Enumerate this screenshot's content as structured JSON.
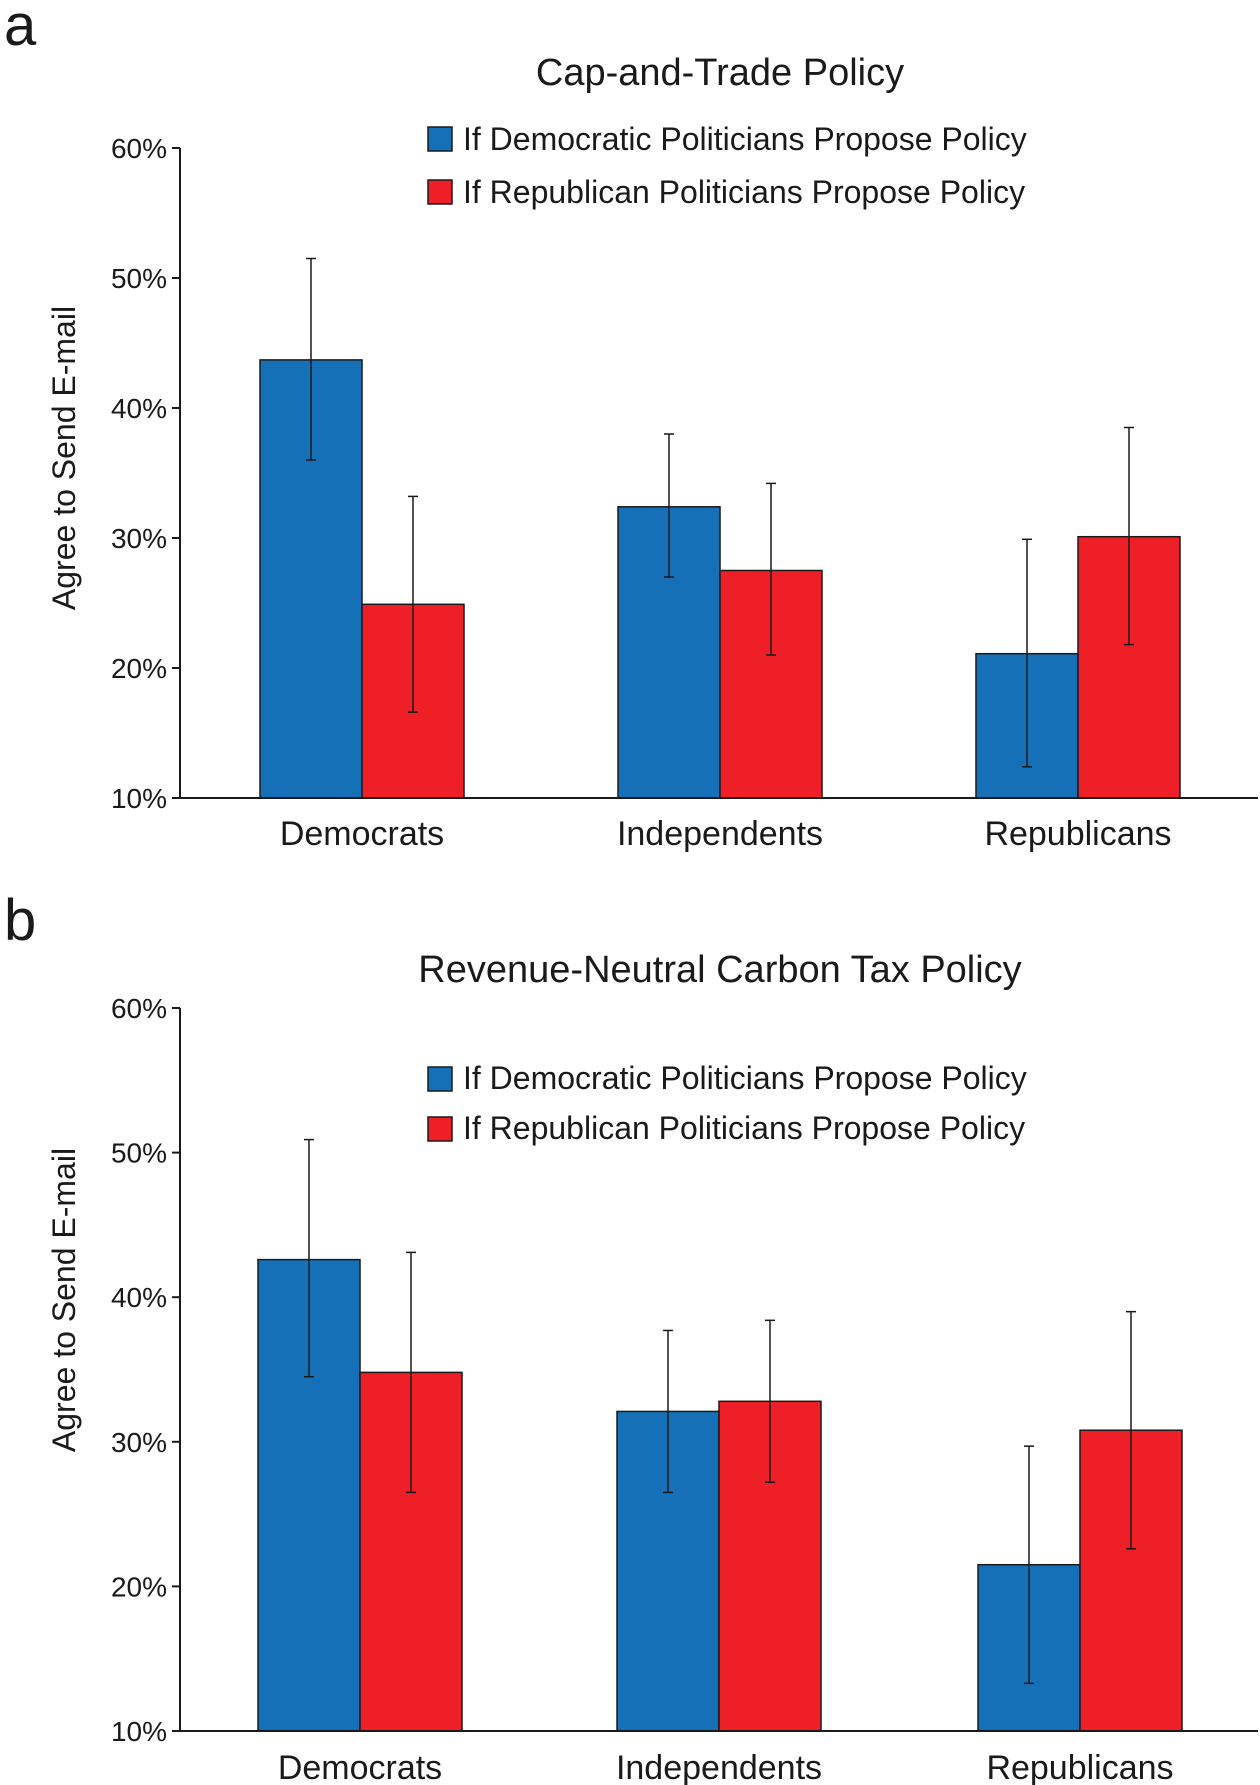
{
  "chart_data": [
    {
      "panel": "a",
      "type": "bar",
      "title": "Cap-and-Trade Policy",
      "ylabel": "Agree to Send E-mail",
      "xlabel": "",
      "ylim": [
        10,
        60
      ],
      "yticks": [
        "10%",
        "20%",
        "30%",
        "40%",
        "50%",
        "60%"
      ],
      "yticks_values": [
        10,
        20,
        30,
        40,
        50,
        60
      ],
      "categories": [
        "Democrats",
        "Independents",
        "Republicans"
      ],
      "legend_position": "top-right",
      "series": [
        {
          "name": "If Democratic Politicians Propose Policy",
          "color": "#1570b8",
          "values": [
            43.7,
            32.4,
            21.1
          ],
          "error_low": [
            36.0,
            27.0,
            12.4
          ],
          "error_high": [
            51.5,
            38.0,
            29.9
          ]
        },
        {
          "name": "If Republican Politicians Propose Policy",
          "color": "#ee1f26",
          "values": [
            24.9,
            27.5,
            30.1
          ],
          "error_low": [
            16.6,
            21.0,
            21.8
          ],
          "error_high": [
            33.2,
            34.2,
            38.5
          ]
        }
      ]
    },
    {
      "panel": "b",
      "type": "bar",
      "title": "Revenue-Neutral Carbon Tax Policy",
      "ylabel": "Agree to Send E-mail",
      "xlabel": "",
      "ylim": [
        10,
        60
      ],
      "yticks": [
        "10%",
        "20%",
        "30%",
        "40%",
        "50%",
        "60%"
      ],
      "yticks_values": [
        10,
        20,
        30,
        40,
        50,
        60
      ],
      "categories": [
        "Democrats",
        "Independents",
        "Republicans"
      ],
      "legend_position": "top-right",
      "series": [
        {
          "name": "If Democratic Politicians Propose Policy",
          "color": "#1570b8",
          "values": [
            42.6,
            32.1,
            21.5
          ],
          "error_low": [
            34.5,
            26.5,
            13.3
          ],
          "error_high": [
            50.9,
            37.7,
            29.7
          ]
        },
        {
          "name": "If Republican Politicians Propose Policy",
          "color": "#ee1f26",
          "values": [
            34.8,
            32.8,
            30.8
          ],
          "error_low": [
            26.5,
            27.2,
            22.6
          ],
          "error_high": [
            43.1,
            38.4,
            39.0
          ]
        }
      ]
    }
  ]
}
